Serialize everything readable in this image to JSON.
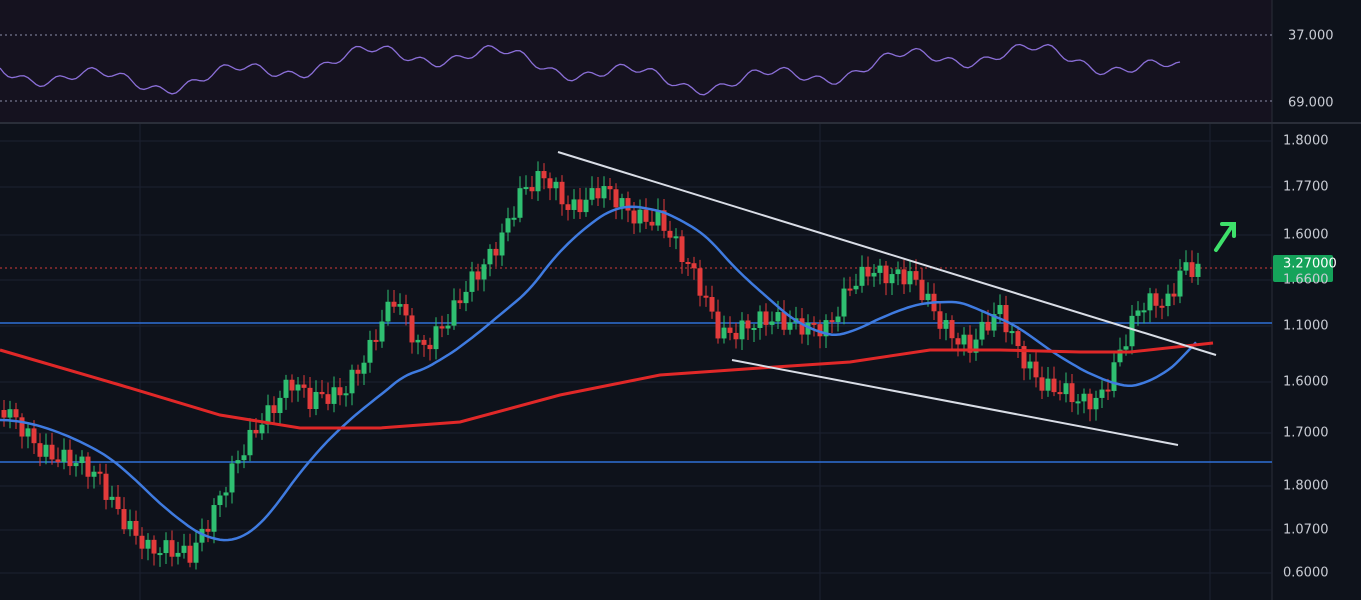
{
  "indicator_panel": {
    "axis_labels": [
      "37.000",
      "69.000"
    ]
  },
  "price_panel": {
    "axis_labels": [
      "1.8000",
      "1.7700",
      "1.6000",
      "1.6600",
      "1.1000",
      "1.6000",
      "1.7000",
      "1.8000",
      "1.0700",
      "0.6000"
    ],
    "price_tag": "3.27000"
  }
}
